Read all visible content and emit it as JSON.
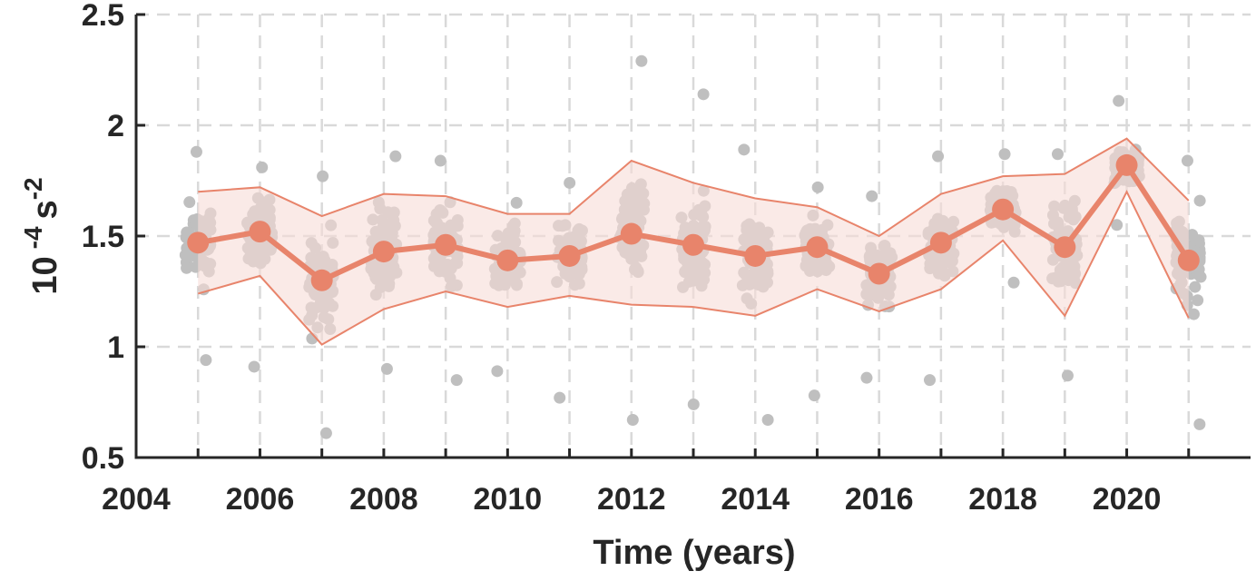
{
  "chart_data": {
    "type": "line",
    "xlabel": "Time (years)",
    "ylabel": {
      "base": "10",
      "exp1": "-4",
      "unit": "s",
      "exp2": "-2"
    },
    "xlim": [
      2004,
      2022
    ],
    "ylim": [
      0.5,
      2.5
    ],
    "xticks": [
      "2004",
      "2006",
      "2008",
      "2010",
      "2012",
      "2014",
      "2016",
      "2018",
      "2020"
    ],
    "yticks": [
      "0.5",
      "1",
      "1.5",
      "2",
      "2.5"
    ],
    "grid": true,
    "colors": {
      "mean": "#e8846b",
      "band": "#f6dcd7",
      "points": "#bfbfbf",
      "axis": "#262626",
      "grid": "#d9d9d9"
    },
    "x": [
      2005,
      2006,
      2007,
      2008,
      2009,
      2010,
      2011,
      2012,
      2013,
      2014,
      2015,
      2016,
      2017,
      2018,
      2019,
      2020,
      2021
    ],
    "series": [
      {
        "values": [
          1.47,
          1.52,
          1.3,
          1.43,
          1.46,
          1.39,
          1.41,
          1.51,
          1.46,
          1.41,
          1.45,
          1.33,
          1.47,
          1.62,
          1.45,
          1.82,
          1.39
        ]
      }
    ],
    "upper": [
      1.7,
      1.72,
      1.59,
      1.69,
      1.68,
      1.6,
      1.6,
      1.84,
      1.74,
      1.67,
      1.63,
      1.5,
      1.69,
      1.77,
      1.78,
      1.94,
      1.66
    ],
    "lower": [
      1.24,
      1.32,
      1.01,
      1.17,
      1.25,
      1.18,
      1.23,
      1.19,
      1.18,
      1.14,
      1.26,
      1.16,
      1.26,
      1.48,
      1.14,
      1.7,
      1.13
    ],
    "scatter": {
      "2005": {
        "min": 0.94,
        "max": 1.88
      },
      "2006": {
        "min": 0.91,
        "max": 1.81
      },
      "2007": {
        "min": 0.61,
        "max": 1.77
      },
      "2008": {
        "min": 0.9,
        "max": 1.86
      },
      "2009": {
        "min": 0.85,
        "max": 1.84
      },
      "2010": {
        "min": 0.89,
        "max": 1.65
      },
      "2011": {
        "min": 0.77,
        "max": 1.74
      },
      "2012": {
        "min": 0.67,
        "max": 2.29
      },
      "2013": {
        "min": 0.74,
        "max": 2.14
      },
      "2014": {
        "min": 0.67,
        "max": 1.89
      },
      "2015": {
        "min": 0.78,
        "max": 1.72
      },
      "2016": {
        "min": 0.86,
        "max": 1.68
      },
      "2017": {
        "min": 0.85,
        "max": 1.86
      },
      "2018": {
        "min": 1.29,
        "max": 1.87
      },
      "2019": {
        "min": 0.87,
        "max": 1.87
      },
      "2020": {
        "min": 1.55,
        "max": 2.11
      },
      "2021": {
        "min": 0.65,
        "max": 1.84
      }
    }
  }
}
